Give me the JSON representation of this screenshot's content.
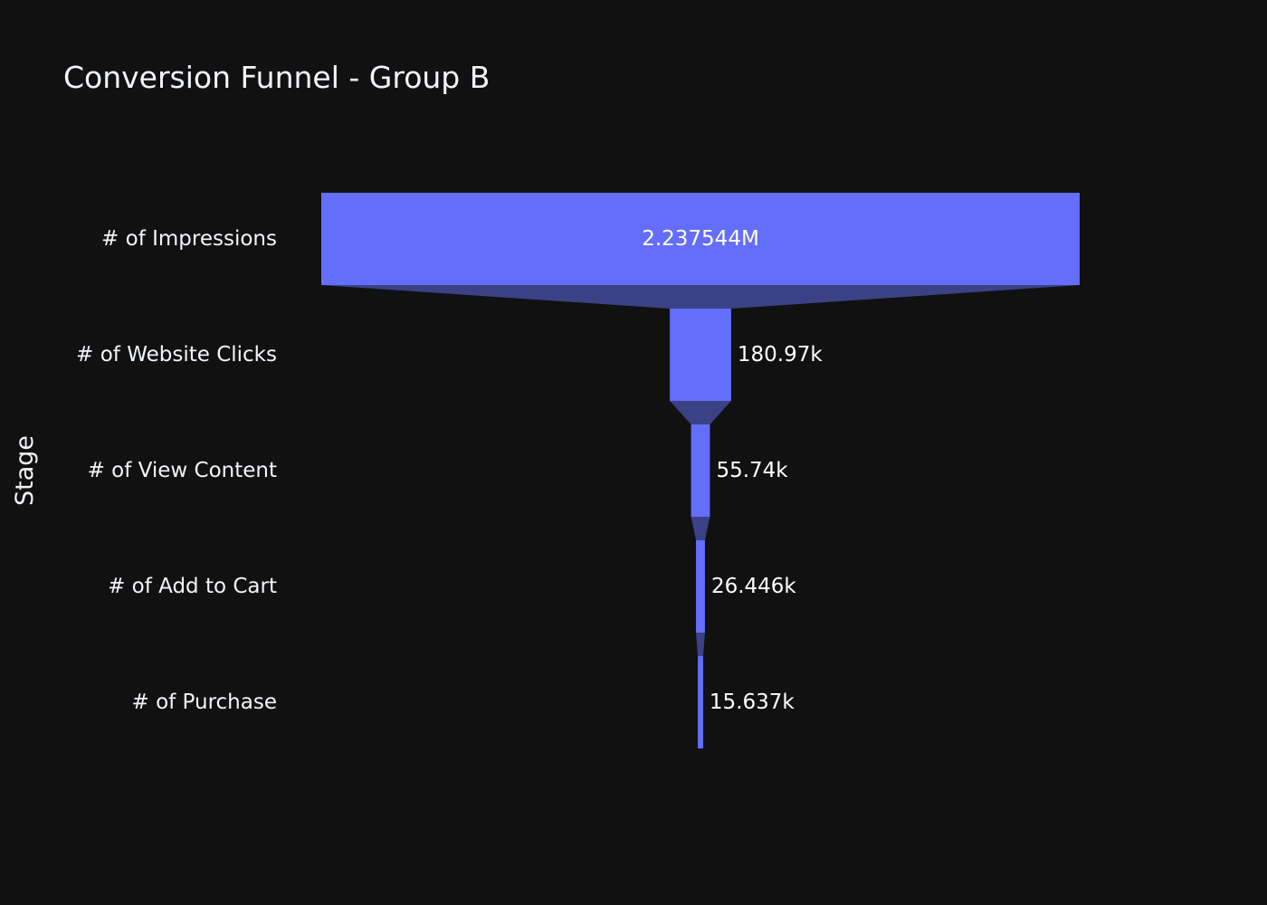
{
  "chart_data": {
    "type": "funnel",
    "title": "Conversion Funnel - Group B",
    "ylabel": "Stage",
    "categories": [
      "# of Impressions",
      "# of Website Clicks",
      "# of View Content",
      "# of Add to Cart",
      "# of Purchase"
    ],
    "values": [
      2237544,
      180970,
      55740,
      26446,
      15637
    ],
    "value_labels": [
      "2.237544M",
      "180.97k",
      "55.74k",
      "26.446k",
      "15.637k"
    ],
    "bar_color": "#636efa",
    "connector_color": "#3b4185",
    "background_color": "#111111"
  }
}
